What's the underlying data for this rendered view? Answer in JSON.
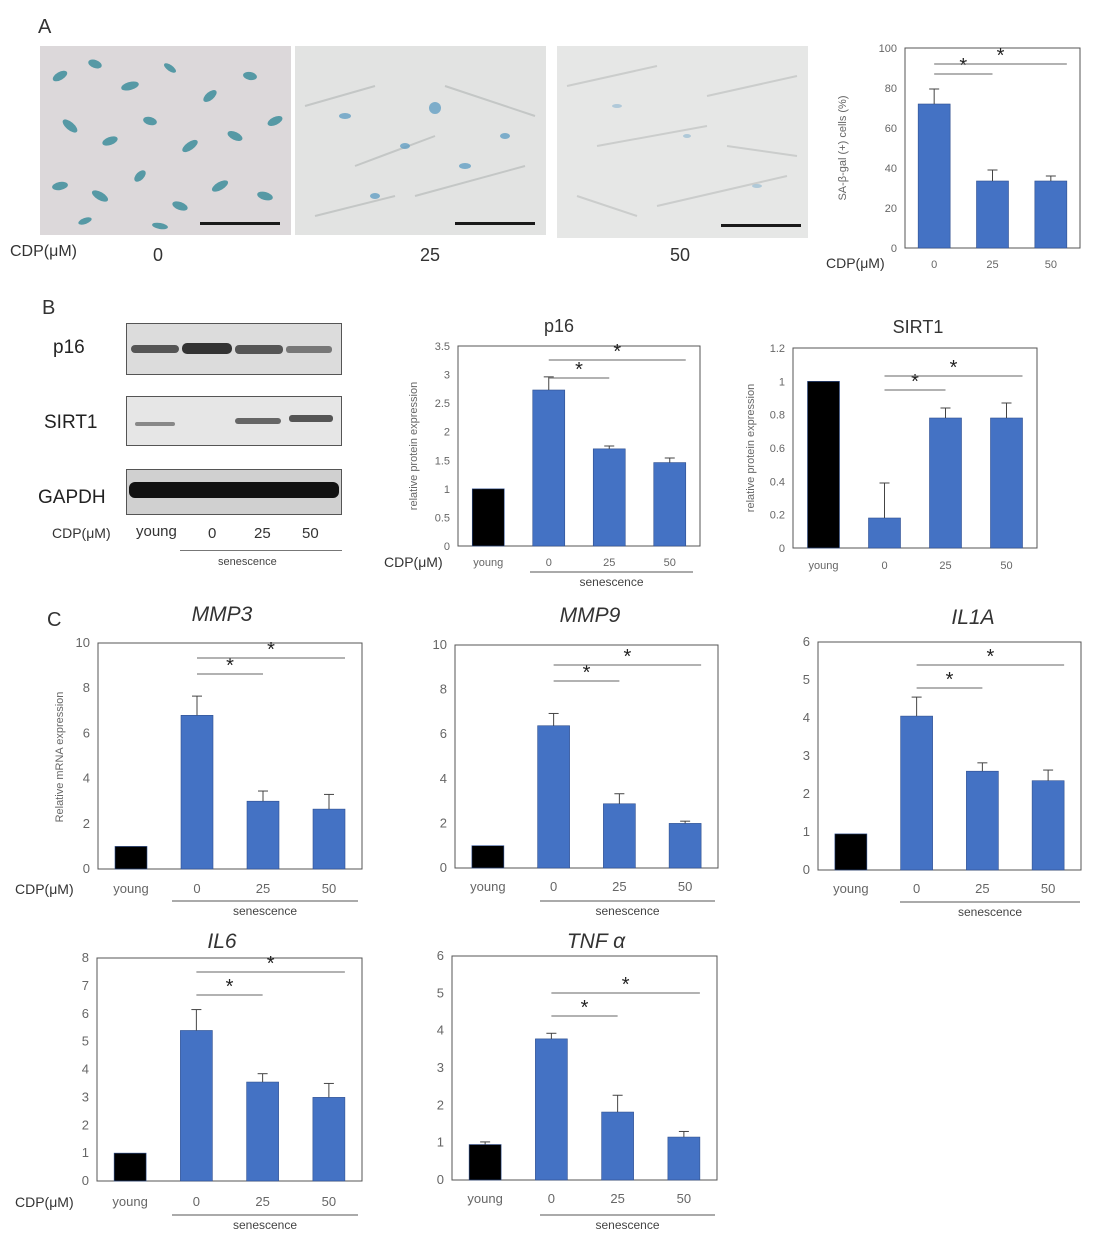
{
  "panels": {
    "A": "A",
    "B": "B",
    "C": "C"
  },
  "panelA": {
    "cdp_label": "CDP(μM)",
    "concentrations": [
      "0",
      "25",
      "50"
    ]
  },
  "panelB": {
    "blots": [
      "p16",
      "SIRT1",
      "GAPDH"
    ],
    "cdp_label": "CDP(μM)",
    "lanes": [
      "young",
      "0",
      "25",
      "50"
    ],
    "group_label": "senescence"
  },
  "colors": {
    "treated": "#4472c4",
    "young": "#000000",
    "axis": "#555555"
  },
  "chart_data": [
    {
      "id": "sagal",
      "type": "bar",
      "title": "",
      "ylabel": "SA-β-gal (+) cells (%)",
      "xlabel": "CDP(μM)",
      "categories": [
        "0",
        "25",
        "50"
      ],
      "values": [
        72,
        33.5,
        33.5
      ],
      "errors": [
        7.5,
        5.5,
        2.5
      ],
      "colors": [
        "#4472c4",
        "#4472c4",
        "#4472c4"
      ],
      "ylim": [
        0,
        100
      ],
      "yticks": [
        "0",
        "20",
        "40",
        "60",
        "80",
        "100"
      ],
      "group_label": "",
      "sig": [
        {
          "from": 0,
          "to": 1,
          "label": "*"
        },
        {
          "from": 0,
          "to": 2,
          "label": "*"
        }
      ]
    },
    {
      "id": "p16",
      "type": "bar",
      "title": "p16",
      "ylabel": "relative protein expression",
      "xlabel": "CDP(μM)",
      "categories": [
        "young",
        "0",
        "25",
        "50"
      ],
      "values": [
        1.0,
        2.73,
        1.7,
        1.46
      ],
      "errors": [
        0,
        0.23,
        0.05,
        0.08
      ],
      "colors": [
        "#000000",
        "#4472c4",
        "#4472c4",
        "#4472c4"
      ],
      "ylim": [
        0,
        3.5
      ],
      "yticks": [
        "0",
        "0.5",
        "1",
        "1.5",
        "2",
        "2.5",
        "3",
        "3.5"
      ],
      "group_label": "senescence",
      "sig": [
        {
          "from": 1,
          "to": 2,
          "label": "*"
        },
        {
          "from": 1,
          "to": 3,
          "label": "*"
        }
      ]
    },
    {
      "id": "sirt1",
      "type": "bar",
      "title": "SIRT1",
      "ylabel": "relative protein expression",
      "xlabel": "",
      "categories": [
        "young",
        "0",
        "25",
        "50"
      ],
      "values": [
        1.0,
        0.18,
        0.78,
        0.78
      ],
      "errors": [
        0,
        0.21,
        0.06,
        0.09
      ],
      "colors": [
        "#000000",
        "#4472c4",
        "#4472c4",
        "#4472c4"
      ],
      "ylim": [
        0,
        1.2
      ],
      "yticks": [
        "0",
        "0.2",
        "0.4",
        "0.6",
        "0.8",
        "1",
        "1.2"
      ],
      "group_label": "",
      "sig": [
        {
          "from": 1,
          "to": 2,
          "label": "*"
        },
        {
          "from": 1,
          "to": 3,
          "label": "*"
        }
      ]
    },
    {
      "id": "mmp3",
      "type": "bar",
      "title": "MMP3",
      "ylabel": "Relative mRNA expression",
      "xlabel": "CDP(μM)",
      "categories": [
        "young",
        "0",
        "25",
        "50"
      ],
      "values": [
        1.0,
        6.8,
        3.0,
        2.65
      ],
      "errors": [
        0,
        0.85,
        0.45,
        0.65
      ],
      "colors": [
        "#000000",
        "#4472c4",
        "#4472c4",
        "#4472c4"
      ],
      "ylim": [
        0,
        10
      ],
      "yticks": [
        "0",
        "2",
        "4",
        "6",
        "8",
        "10"
      ],
      "group_label": "senescence",
      "sig": [
        {
          "from": 1,
          "to": 2,
          "label": "*"
        },
        {
          "from": 1,
          "to": 3,
          "label": "*"
        }
      ]
    },
    {
      "id": "mmp9",
      "type": "bar",
      "title": "MMP9",
      "ylabel": "",
      "xlabel": "",
      "categories": [
        "young",
        "0",
        "25",
        "50"
      ],
      "values": [
        1.0,
        6.38,
        2.88,
        2.0
      ],
      "errors": [
        0,
        0.55,
        0.45,
        0.1
      ],
      "colors": [
        "#000000",
        "#4472c4",
        "#4472c4",
        "#4472c4"
      ],
      "ylim": [
        0,
        10
      ],
      "yticks": [
        "0",
        "2",
        "4",
        "6",
        "8",
        "10"
      ],
      "group_label": "senescence",
      "sig": [
        {
          "from": 1,
          "to": 2,
          "label": "*"
        },
        {
          "from": 1,
          "to": 3,
          "label": "*"
        }
      ]
    },
    {
      "id": "il1a",
      "type": "bar",
      "title": "IL1A",
      "ylabel": "",
      "xlabel": "",
      "categories": [
        "young",
        "0",
        "25",
        "50"
      ],
      "values": [
        0.95,
        4.05,
        2.6,
        2.35
      ],
      "errors": [
        0,
        0.5,
        0.22,
        0.28
      ],
      "colors": [
        "#000000",
        "#4472c4",
        "#4472c4",
        "#4472c4"
      ],
      "ylim": [
        0,
        6
      ],
      "yticks": [
        "0",
        "1",
        "2",
        "3",
        "4",
        "5",
        "6"
      ],
      "group_label": "senescence",
      "sig": [
        {
          "from": 1,
          "to": 2,
          "label": "*"
        },
        {
          "from": 1,
          "to": 3,
          "label": "*"
        }
      ]
    },
    {
      "id": "il6",
      "type": "bar",
      "title": "IL6",
      "ylabel": "",
      "xlabel": "CDP(μM)",
      "categories": [
        "young",
        "0",
        "25",
        "50"
      ],
      "values": [
        1.0,
        5.4,
        3.55,
        3.0
      ],
      "errors": [
        0,
        0.75,
        0.3,
        0.5
      ],
      "colors": [
        "#000000",
        "#4472c4",
        "#4472c4",
        "#4472c4"
      ],
      "ylim": [
        0,
        8
      ],
      "yticks": [
        "0",
        "1",
        "2",
        "3",
        "4",
        "5",
        "6",
        "7",
        "8"
      ],
      "group_label": "senescence",
      "sig": [
        {
          "from": 1,
          "to": 2,
          "label": "*"
        },
        {
          "from": 1,
          "to": 3,
          "label": "*"
        }
      ]
    },
    {
      "id": "tnfa",
      "type": "bar",
      "title": "TNF α",
      "ylabel": "",
      "xlabel": "",
      "categories": [
        "young",
        "0",
        "25",
        "50"
      ],
      "values": [
        0.95,
        3.78,
        1.82,
        1.15
      ],
      "errors": [
        0.07,
        0.15,
        0.45,
        0.15
      ],
      "colors": [
        "#000000",
        "#4472c4",
        "#4472c4",
        "#4472c4"
      ],
      "ylim": [
        0,
        6
      ],
      "yticks": [
        "0",
        "1",
        "2",
        "3",
        "4",
        "5",
        "6"
      ],
      "group_label": "senescence",
      "sig": [
        {
          "from": 1,
          "to": 2,
          "label": "*"
        },
        {
          "from": 1,
          "to": 3,
          "label": "*"
        }
      ]
    }
  ]
}
